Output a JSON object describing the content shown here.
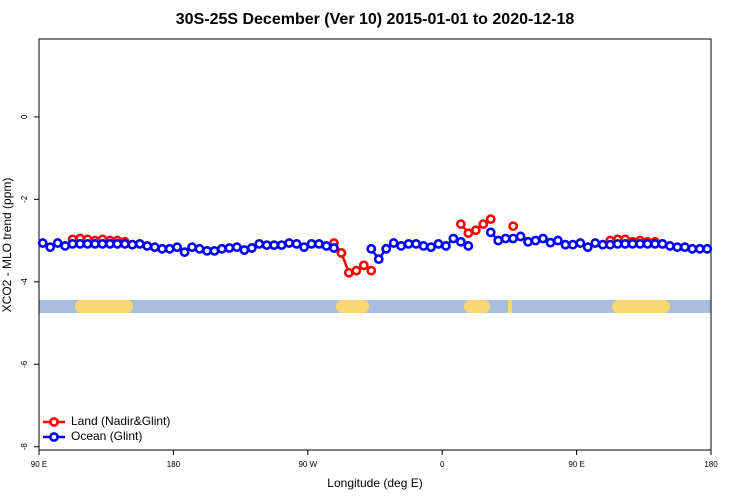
{
  "chart_data": {
    "type": "line",
    "title": "30S-25S December (Ver 10)   2015-01-01 to 2020-12-18",
    "x_label": "Longitude (deg E)",
    "y_label": "XCO2 - MLO trend (ppm)",
    "xlim": [
      90,
      540
    ],
    "xticks": [
      {
        "value": 90,
        "label": "90 E"
      },
      180,
      {
        "value": 270,
        "label": "90 W"
      },
      {
        "value": 360,
        "label": "0"
      },
      {
        "value": 450,
        "label": "90 E"
      },
      {
        "value": 540,
        "label": "180"
      }
    ],
    "ylim": [
      -8.08,
      1.89
    ],
    "yticks": [
      0,
      -2,
      -4,
      -6,
      -8
    ],
    "legend": "bottom-left",
    "x": [
      92.5,
      97.5,
      102.5,
      107.5,
      112.5,
      117.5,
      122.5,
      127.5,
      132.5,
      137.5,
      142.5,
      147.5,
      152.5,
      157.5,
      162.5,
      167.5,
      172.5,
      177.5,
      182.5,
      187.5,
      192.5,
      197.5,
      202.5,
      207.5,
      212.5,
      217.5,
      222.5,
      227.5,
      232.5,
      237.5,
      242.5,
      247.5,
      252.5,
      257.5,
      262.5,
      267.5,
      272.5,
      277.5,
      282.5,
      287.5,
      292.5,
      297.5,
      302.5,
      307.5,
      312.5,
      317.5,
      322.5,
      327.5,
      332.5,
      337.5,
      342.5,
      347.5,
      352.5,
      357.5,
      362.5,
      367.5,
      372.5,
      377.5,
      382.5,
      387.5,
      392.5,
      397.5,
      402.5,
      407.5,
      412.5,
      417.5,
      422.5,
      427.5,
      432.5,
      437.5,
      442.5,
      447.5,
      452.5,
      457.5,
      462.5,
      467.5,
      472.5,
      477.5,
      482.5,
      487.5,
      492.5,
      497.5,
      502.5,
      507.5,
      512.5,
      517.5,
      522.5,
      527.5,
      532.5,
      537.5
    ],
    "series": [
      {
        "name": "Land (Nadir&Glint)",
        "color": "#ff0000",
        "values": [
          null,
          null,
          null,
          null,
          -2.97,
          -2.95,
          -2.97,
          -3.0,
          -2.97,
          -3.0,
          -3.0,
          -3.03,
          -3.1,
          null,
          null,
          null,
          null,
          null,
          null,
          null,
          null,
          null,
          null,
          null,
          null,
          null,
          null,
          null,
          null,
          null,
          null,
          null,
          null,
          null,
          null,
          null,
          null,
          null,
          null,
          -3.06,
          -3.3,
          -3.78,
          -3.73,
          -3.6,
          -3.73,
          null,
          null,
          null,
          null,
          null,
          null,
          null,
          null,
          null,
          null,
          null,
          -2.6,
          -2.82,
          -2.75,
          -2.6,
          -2.48,
          null,
          null,
          -2.65,
          null,
          null,
          null,
          null,
          null,
          null,
          null,
          null,
          null,
          null,
          null,
          null,
          -3.0,
          -2.97,
          -2.97,
          -3.03,
          -3.0,
          -3.03,
          -3.03,
          -3.08,
          null,
          null,
          null,
          null,
          null,
          null
        ]
      },
      {
        "name": "Ocean (Glint)",
        "color": "#0000ff",
        "values": [
          -3.06,
          -3.16,
          -3.06,
          -3.13,
          -3.08,
          -3.08,
          -3.08,
          -3.08,
          -3.08,
          -3.08,
          -3.08,
          -3.08,
          -3.1,
          -3.08,
          -3.13,
          -3.16,
          -3.2,
          -3.2,
          -3.16,
          -3.28,
          -3.16,
          -3.2,
          -3.25,
          -3.25,
          -3.2,
          -3.18,
          -3.16,
          -3.23,
          -3.18,
          -3.08,
          -3.11,
          -3.11,
          -3.11,
          -3.06,
          -3.08,
          -3.16,
          -3.08,
          -3.08,
          -3.13,
          -3.18,
          null,
          null,
          null,
          null,
          -3.2,
          -3.45,
          -3.2,
          -3.06,
          -3.13,
          -3.08,
          -3.08,
          -3.13,
          -3.16,
          -3.08,
          -3.13,
          -2.95,
          -3.03,
          -3.13,
          null,
          null,
          -2.8,
          -3.0,
          -2.95,
          -2.95,
          -2.9,
          -3.03,
          -3.0,
          -2.95,
          -3.05,
          -3.0,
          -3.1,
          -3.1,
          -3.06,
          -3.16,
          -3.06,
          -3.1,
          -3.1,
          -3.08,
          -3.08,
          -3.08,
          -3.08,
          -3.08,
          -3.08,
          -3.08,
          -3.13,
          -3.16,
          -3.16,
          -3.2,
          -3.2,
          -3.2
        ]
      }
    ]
  }
}
